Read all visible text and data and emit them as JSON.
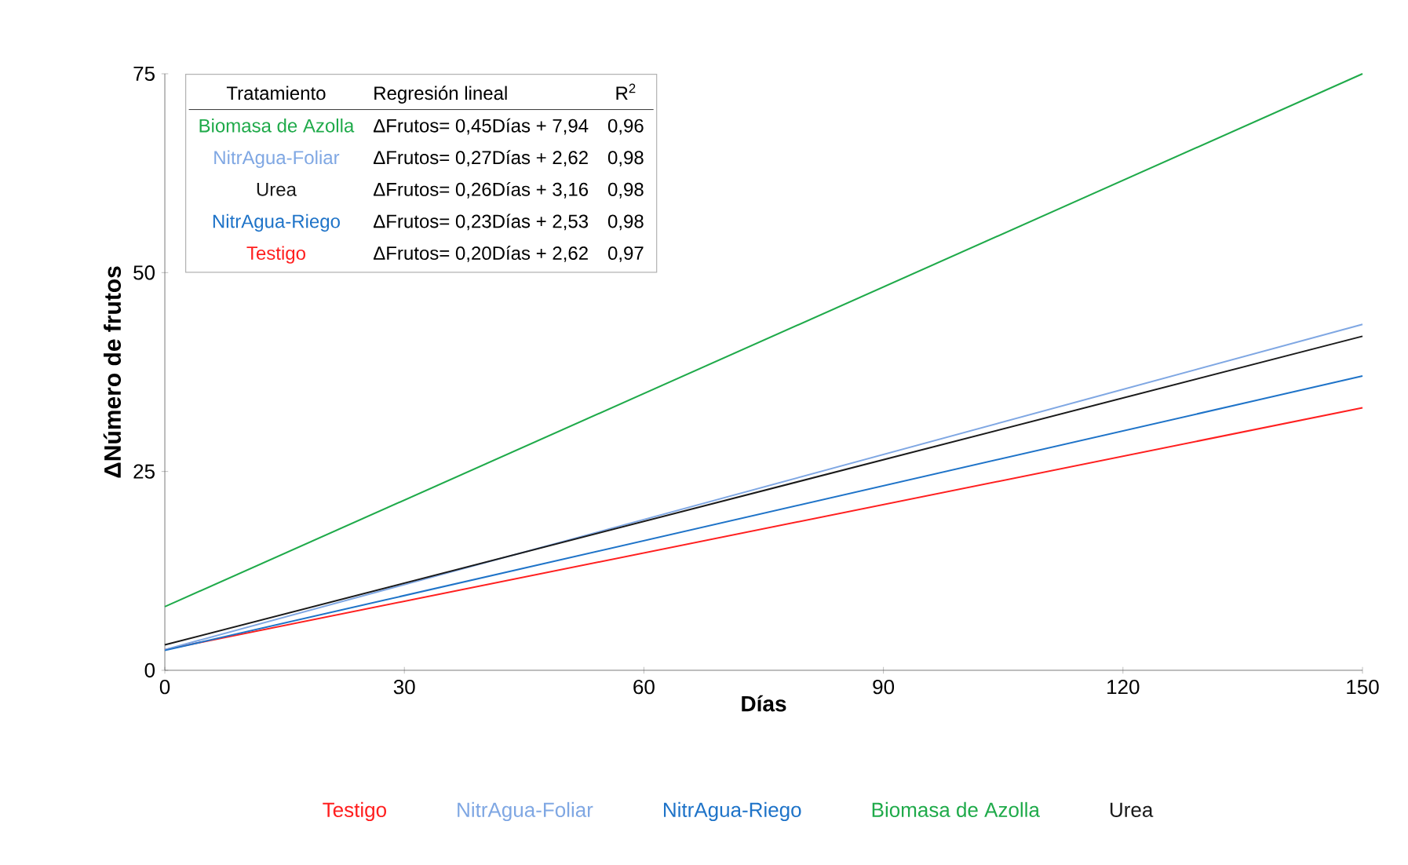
{
  "chart_data": {
    "type": "line",
    "xlabel": "Días",
    "ylabel": "ΔNúmero de frutos",
    "xlim": [
      0,
      150
    ],
    "xticks": [
      0,
      30,
      60,
      90,
      120,
      150
    ],
    "ylim": [
      0,
      75
    ],
    "yticks": [
      0,
      25,
      50,
      75
    ],
    "legend": "bottom",
    "grid": false,
    "x": [
      0,
      150
    ],
    "series": [
      {
        "name": "Testigo",
        "color": "#ff1f1f",
        "values": [
          2.6,
          33
        ]
      },
      {
        "name": "NitrAgua-Foliar",
        "color": "#7fa7e3",
        "values": [
          2.6,
          43.5
        ]
      },
      {
        "name": "NitrAgua-Riego",
        "color": "#1e73c8",
        "values": [
          2.5,
          37
        ]
      },
      {
        "name": "Biomasa de Azolla",
        "color": "#1faa4a",
        "values": [
          8,
          75
        ]
      },
      {
        "name": "Urea",
        "color": "#1a1a1a",
        "values": [
          3.2,
          42
        ]
      }
    ],
    "annotations": [
      "Tratamiento",
      "Regresión lineal",
      "R$^{2}$",
      "Biomasa de Azolla",
      "ΔFrutos= 0,45Días + 7,94",
      "0,96",
      "NitrAgua-Foliar",
      "ΔFrutos= 0,27Días + 2,62",
      "0,98",
      "Urea",
      "ΔFrutos= 0,26Días + 3,16",
      "0,98",
      "NitrAgua-Riego",
      "ΔFrutos= 0,23Días + 2,53",
      "0,98",
      "Testigo",
      "ΔFrutos= 0,20Días + 2,62",
      "0,97"
    ]
  }
}
